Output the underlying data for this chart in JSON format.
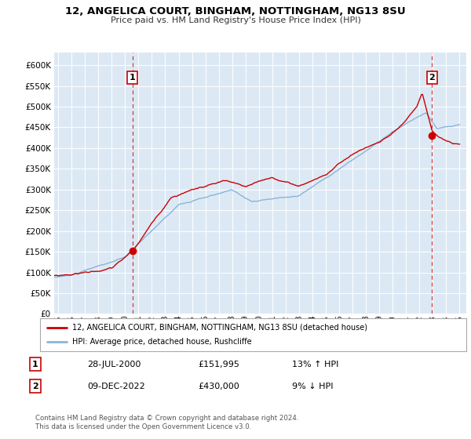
{
  "title": "12, ANGELICA COURT, BINGHAM, NOTTINGHAM, NG13 8SU",
  "subtitle": "Price paid vs. HM Land Registry's House Price Index (HPI)",
  "legend_line1": "12, ANGELICA COURT, BINGHAM, NOTTINGHAM, NG13 8SU (detached house)",
  "legend_line2": "HPI: Average price, detached house, Rushcliffe",
  "sale1_date": "28-JUL-2000",
  "sale1_price": 151995,
  "sale1_hpi": "13% ↑ HPI",
  "sale2_date": "09-DEC-2022",
  "sale2_price": 430000,
  "sale2_hpi": "9% ↓ HPI",
  "footer_line1": "Contains HM Land Registry data © Crown copyright and database right 2024.",
  "footer_line2": "This data is licensed under the Open Government Licence v3.0.",
  "red_color": "#cc0000",
  "blue_color": "#89b4d9",
  "plot_bg_color": "#dce9f5",
  "yticks": [
    0,
    50000,
    100000,
    150000,
    200000,
    250000,
    300000,
    350000,
    400000,
    450000,
    500000,
    550000,
    600000
  ],
  "xlim_start": 1994.7,
  "xlim_end": 2025.5,
  "sale1_x": 2000.55,
  "sale2_x": 2022.94,
  "sale1_y": 151995,
  "sale2_y": 430000
}
